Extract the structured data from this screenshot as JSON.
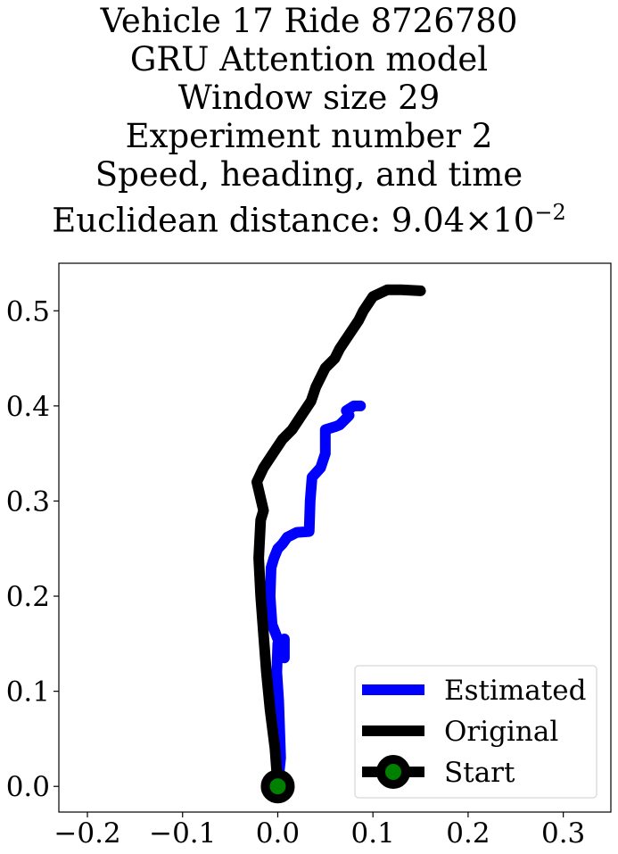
{
  "chart_data": {
    "type": "line",
    "title_lines": [
      "Vehicle 17 Ride 8726780",
      "GRU Attention model",
      "Window size 29",
      "Experiment number 2",
      "Speed, heading, and time"
    ],
    "title_distance_prefix": "Euclidean distance: 9.04",
    "title_distance_times": "×",
    "title_distance_base": "10",
    "title_distance_exponent": "−2",
    "xlabel": "",
    "ylabel": "",
    "xlim": [
      -0.23,
      0.35
    ],
    "ylim": [
      -0.027,
      0.55
    ],
    "xticks": [
      -0.2,
      -0.1,
      0.0,
      0.1,
      0.2,
      0.3
    ],
    "xtick_labels": [
      "−0.2",
      "−0.1",
      "0.0",
      "0.1",
      "0.2",
      "0.3"
    ],
    "yticks": [
      0.0,
      0.1,
      0.2,
      0.3,
      0.4,
      0.5
    ],
    "ytick_labels": [
      "0.0",
      "0.1",
      "0.2",
      "0.3",
      "0.4",
      "0.5"
    ],
    "legend_position": "lower-right",
    "series": [
      {
        "name": "Estimated",
        "color": "#0000ff",
        "points": [
          [
            0.0,
            0.0
          ],
          [
            0.003,
            0.03
          ],
          [
            0.002,
            0.06
          ],
          [
            0.001,
            0.09
          ],
          [
            -0.001,
            0.12
          ],
          [
            0.0,
            0.15
          ],
          [
            0.007,
            0.155
          ],
          [
            0.007,
            0.135
          ],
          [
            0.004,
            0.145
          ],
          [
            -0.006,
            0.17
          ],
          [
            -0.008,
            0.2
          ],
          [
            -0.007,
            0.23
          ],
          [
            -0.004,
            0.24
          ],
          [
            0.0,
            0.25
          ],
          [
            0.005,
            0.255
          ],
          [
            0.01,
            0.262
          ],
          [
            0.02,
            0.267
          ],
          [
            0.033,
            0.268
          ],
          [
            0.034,
            0.3
          ],
          [
            0.036,
            0.325
          ],
          [
            0.045,
            0.335
          ],
          [
            0.05,
            0.35
          ],
          [
            0.05,
            0.375
          ],
          [
            0.06,
            0.378
          ],
          [
            0.065,
            0.38
          ],
          [
            0.07,
            0.385
          ],
          [
            0.075,
            0.39
          ],
          [
            0.072,
            0.395
          ],
          [
            0.08,
            0.4
          ],
          [
            0.087,
            0.4
          ]
        ]
      },
      {
        "name": "Original",
        "color": "#000000",
        "points": [
          [
            0.0,
            0.0
          ],
          [
            -0.003,
            0.04
          ],
          [
            -0.008,
            0.08
          ],
          [
            -0.012,
            0.12
          ],
          [
            -0.015,
            0.16
          ],
          [
            -0.018,
            0.2
          ],
          [
            -0.02,
            0.24
          ],
          [
            -0.018,
            0.28
          ],
          [
            -0.015,
            0.29
          ],
          [
            -0.022,
            0.32
          ],
          [
            -0.015,
            0.335
          ],
          [
            -0.005,
            0.35
          ],
          [
            0.005,
            0.365
          ],
          [
            0.015,
            0.375
          ],
          [
            0.025,
            0.39
          ],
          [
            0.035,
            0.405
          ],
          [
            0.04,
            0.42
          ],
          [
            0.05,
            0.44
          ],
          [
            0.06,
            0.45
          ],
          [
            0.065,
            0.46
          ],
          [
            0.075,
            0.475
          ],
          [
            0.085,
            0.49
          ],
          [
            0.09,
            0.5
          ],
          [
            0.1,
            0.515
          ],
          [
            0.115,
            0.522
          ],
          [
            0.13,
            0.522
          ],
          [
            0.15,
            0.521
          ]
        ]
      },
      {
        "name": "Start",
        "color": "#000000",
        "marker_color": "#008000",
        "points": [
          [
            0.0,
            0.0
          ]
        ]
      }
    ]
  }
}
